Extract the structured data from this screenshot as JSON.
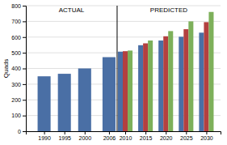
{
  "chart_data": {
    "type": "bar",
    "y_label": "Quads",
    "annotations": [
      "ACTUAL",
      "PREDICTED"
    ],
    "divider_x": 2008,
    "series": [
      {
        "x": [
          1990,
          1995,
          2000,
          2006
        ],
        "values": [
          350,
          366,
          400,
          472
        ],
        "color": "#4a6fa5"
      },
      {
        "x": [
          2010,
          2015,
          2020,
          2025,
          2030
        ],
        "values": [
          507,
          548,
          578,
          602,
          628
        ],
        "color": "#4a6fa5"
      },
      {
        "x": [
          2010,
          2015,
          2020,
          2025,
          2030
        ],
        "values": [
          510,
          560,
          605,
          650,
          695
        ],
        "color": "#b34040"
      },
      {
        "x": [
          2010,
          2015,
          2020,
          2025,
          2030
        ],
        "values": [
          514,
          578,
          638,
          700,
          760
        ],
        "color": "#7db05a"
      }
    ],
    "xlim": [
      1985.5,
      2033.5
    ],
    "xticks": [
      1990,
      1995,
      2000,
      2006,
      2010,
      2015,
      2020,
      2025,
      2030
    ],
    "ylim": [
      0,
      800
    ],
    "yticks": [
      0,
      100,
      200,
      300,
      400,
      500,
      600,
      700,
      800
    ],
    "grid": true
  }
}
